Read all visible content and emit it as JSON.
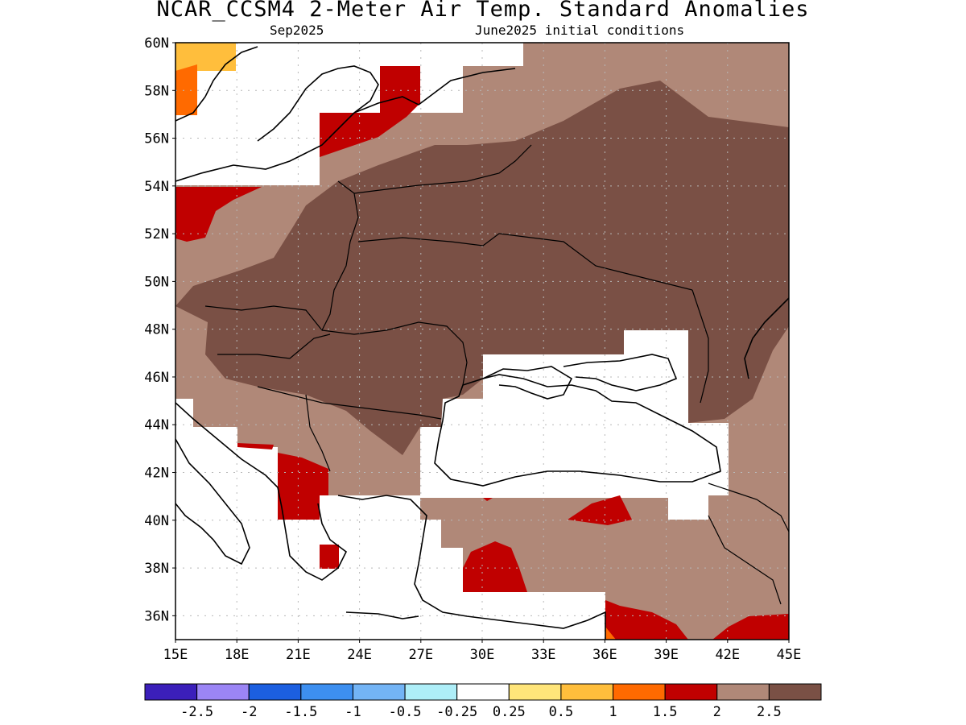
{
  "title": "NCAR_CCSM4 2-Meter Air Temp. Standard Anomalies",
  "subtitle_left": "Sep2025",
  "subtitle_right": "June2025 initial conditions",
  "map": {
    "lon_range": [
      15,
      45
    ],
    "lat_range": [
      35,
      60
    ],
    "lat_labels": [
      "60N",
      "58N",
      "56N",
      "54N",
      "52N",
      "50N",
      "48N",
      "46N",
      "44N",
      "42N",
      "40N",
      "38N",
      "36N"
    ],
    "lon_labels": [
      "15E",
      "18E",
      "21E",
      "24E",
      "27E",
      "30E",
      "33E",
      "36E",
      "39E",
      "42E",
      "45E"
    ],
    "grid": "dotted"
  },
  "colorbar": {
    "colors": [
      "#3b1fba",
      "#9b85f5",
      "#1c5fe0",
      "#3d8ff0",
      "#73b4f5",
      "#aeeef8",
      "#ffffff",
      "#ffe57a",
      "#ffbe3c",
      "#ff6a00",
      "#c00000",
      "#b08878",
      "#7a5045"
    ],
    "labels": [
      "-2.5",
      "-2",
      "-1.5",
      "-1",
      "-0.5",
      "-0.25",
      "0.25",
      "0.5",
      "1",
      "1.5",
      "2",
      "2.5"
    ]
  }
}
